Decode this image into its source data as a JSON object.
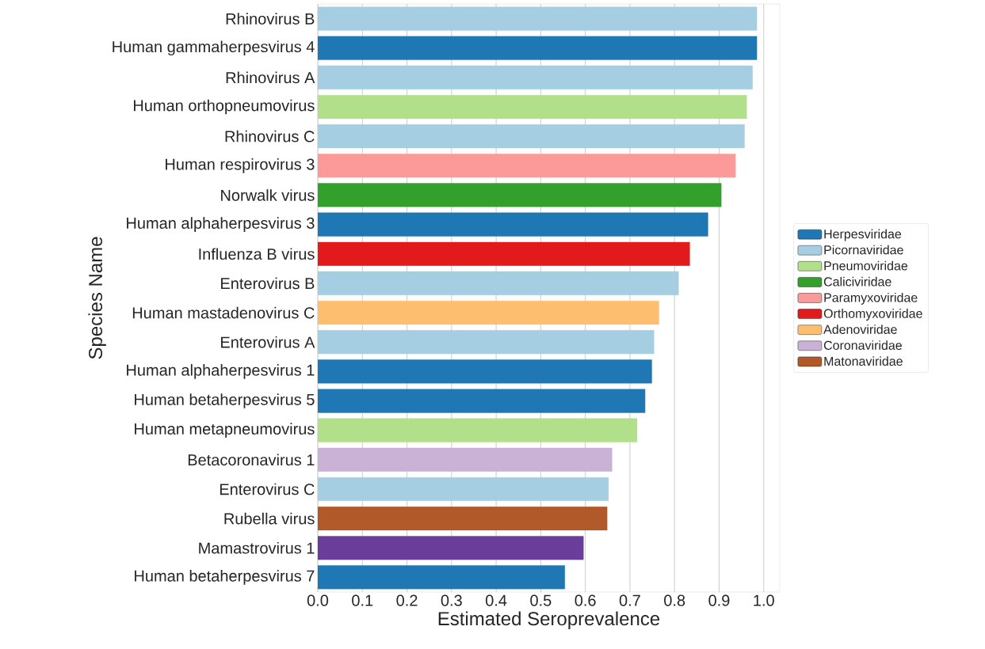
{
  "chart_data": {
    "type": "bar",
    "orientation": "horizontal",
    "xlabel": "Estimated Seroprevalence",
    "ylabel": "Species Name",
    "categories": [
      "Rhinovirus B",
      "Human gammaherpesvirus 4",
      "Rhinovirus A",
      "Human orthopneumovirus",
      "Rhinovirus C",
      "Human respirovirus 3",
      "Norwalk virus",
      "Human alphaherpesvirus 3",
      "Influenza B virus",
      "Enterovirus B",
      "Human mastadenovirus C",
      "Enterovirus A",
      "Human alphaherpesvirus 1",
      "Human betaherpesvirus 5",
      "Human metapneumovirus",
      "Betacoronavirus 1",
      "Enterovirus C",
      "Rubella virus",
      "Mamastrovirus 1",
      "Human betaherpesvirus 7"
    ],
    "series": [
      {
        "name": "Herpesviridae",
        "color": "#1f78b4",
        "values": [
          null,
          0.985,
          null,
          null,
          null,
          null,
          null,
          0.875,
          null,
          null,
          null,
          null,
          0.749,
          0.734,
          null,
          null,
          null,
          null,
          null,
          0.554
        ]
      },
      {
        "name": "Picornaviridae",
        "color": "#a6cee3",
        "values": [
          0.985,
          null,
          0.975,
          null,
          0.957,
          null,
          null,
          null,
          null,
          0.809,
          null,
          0.754,
          null,
          null,
          null,
          null,
          0.652,
          null,
          null,
          null
        ]
      },
      {
        "name": "Pneumoviridae",
        "color": "#b2df8a",
        "values": [
          null,
          null,
          null,
          0.962,
          null,
          null,
          null,
          null,
          null,
          null,
          null,
          null,
          null,
          null,
          0.716,
          null,
          null,
          null,
          null,
          null
        ]
      },
      {
        "name": "Caliciviridae",
        "color": "#33a02c",
        "values": [
          null,
          null,
          null,
          null,
          null,
          null,
          0.905,
          null,
          null,
          null,
          null,
          null,
          null,
          null,
          null,
          null,
          null,
          null,
          null,
          null
        ]
      },
      {
        "name": "Paramyxoviridae",
        "color": "#fb9a99",
        "values": [
          null,
          null,
          null,
          null,
          null,
          0.937,
          null,
          null,
          null,
          null,
          null,
          null,
          null,
          null,
          null,
          null,
          null,
          null,
          null,
          null
        ]
      },
      {
        "name": "Orthomyxoviridae",
        "color": "#e31a1c",
        "values": [
          null,
          null,
          null,
          null,
          null,
          null,
          null,
          null,
          0.834,
          null,
          null,
          null,
          null,
          null,
          null,
          null,
          null,
          null,
          null,
          null
        ]
      },
      {
        "name": "Adenoviridae",
        "color": "#fdbf6f",
        "values": [
          null,
          null,
          null,
          null,
          null,
          null,
          null,
          null,
          null,
          null,
          0.765,
          null,
          null,
          null,
          null,
          null,
          null,
          null,
          null,
          null
        ]
      },
      {
        "name": "Coronaviridae",
        "color": "#cab2d6",
        "values": [
          null,
          null,
          null,
          null,
          null,
          null,
          null,
          null,
          null,
          null,
          null,
          null,
          null,
          null,
          null,
          0.66,
          null,
          null,
          null,
          null
        ]
      },
      {
        "name": "Matonaviridae",
        "color": "#b15928",
        "values": [
          null,
          null,
          null,
          null,
          null,
          null,
          null,
          null,
          null,
          null,
          null,
          null,
          null,
          null,
          null,
          null,
          null,
          0.649,
          null,
          null
        ]
      },
      {
        "color": "#6a3d9a",
        "values": [
          null,
          null,
          null,
          null,
          null,
          null,
          null,
          null,
          null,
          null,
          null,
          null,
          null,
          null,
          null,
          null,
          null,
          null,
          0.596,
          null
        ]
      }
    ],
    "xlim": [
      0,
      1.036
    ],
    "xticks": [
      {
        "value": 0,
        "label": "0.0"
      },
      {
        "value": 0.1,
        "label": "0.1"
      },
      {
        "value": 0.2,
        "label": "0.2"
      },
      {
        "value": 0.3,
        "label": "0.3"
      },
      {
        "value": 0.4,
        "label": "0.4"
      },
      {
        "value": 0.5,
        "label": "0.5"
      },
      {
        "value": 0.6,
        "label": "0.6"
      },
      {
        "value": 0.7,
        "label": "0.7"
      },
      {
        "value": 0.8,
        "label": "0.8"
      },
      {
        "value": 0.9,
        "label": "0.9"
      },
      {
        "value": 1.0,
        "label": "1.0"
      }
    ],
    "grid": "x",
    "legend": "right"
  }
}
